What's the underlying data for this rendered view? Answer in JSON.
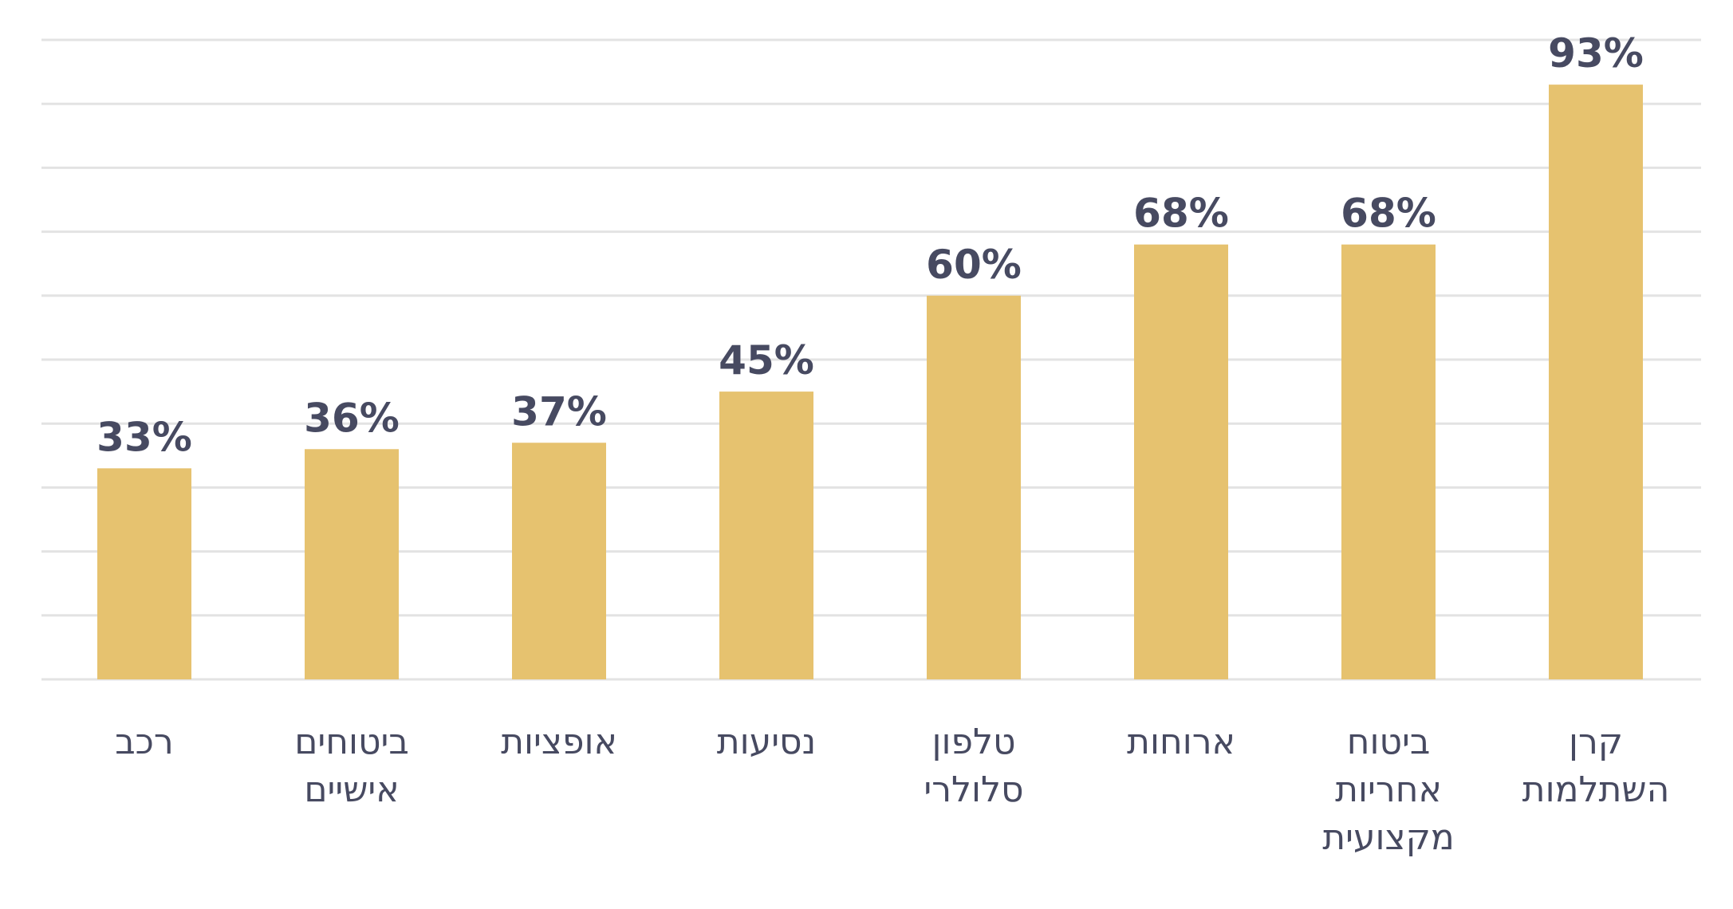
{
  "colors": {
    "bar": "#e6c26f",
    "label": "#474a61",
    "grid": "#e3e3e3"
  },
  "chart_data": {
    "type": "bar",
    "categories": [
      [
        "רכב"
      ],
      [
        "ביטוחים",
        "אישיים"
      ],
      [
        "אופציות"
      ],
      [
        "נסיעות"
      ],
      [
        "טלפון",
        "סלולרי"
      ],
      [
        "ארוחות"
      ],
      [
        "ביטוח",
        "אחריות",
        "מקצועית"
      ],
      [
        "קרן",
        "השתלמות"
      ]
    ],
    "values": [
      33,
      36,
      37,
      45,
      60,
      68,
      68,
      93
    ],
    "value_labels": [
      "33%",
      "36%",
      "37%",
      "45%",
      "60%",
      "68%",
      "68%",
      "93%"
    ],
    "ylim": [
      0,
      100
    ],
    "grid": true,
    "legend": "none",
    "title": "",
    "xlabel": "",
    "ylabel": ""
  }
}
